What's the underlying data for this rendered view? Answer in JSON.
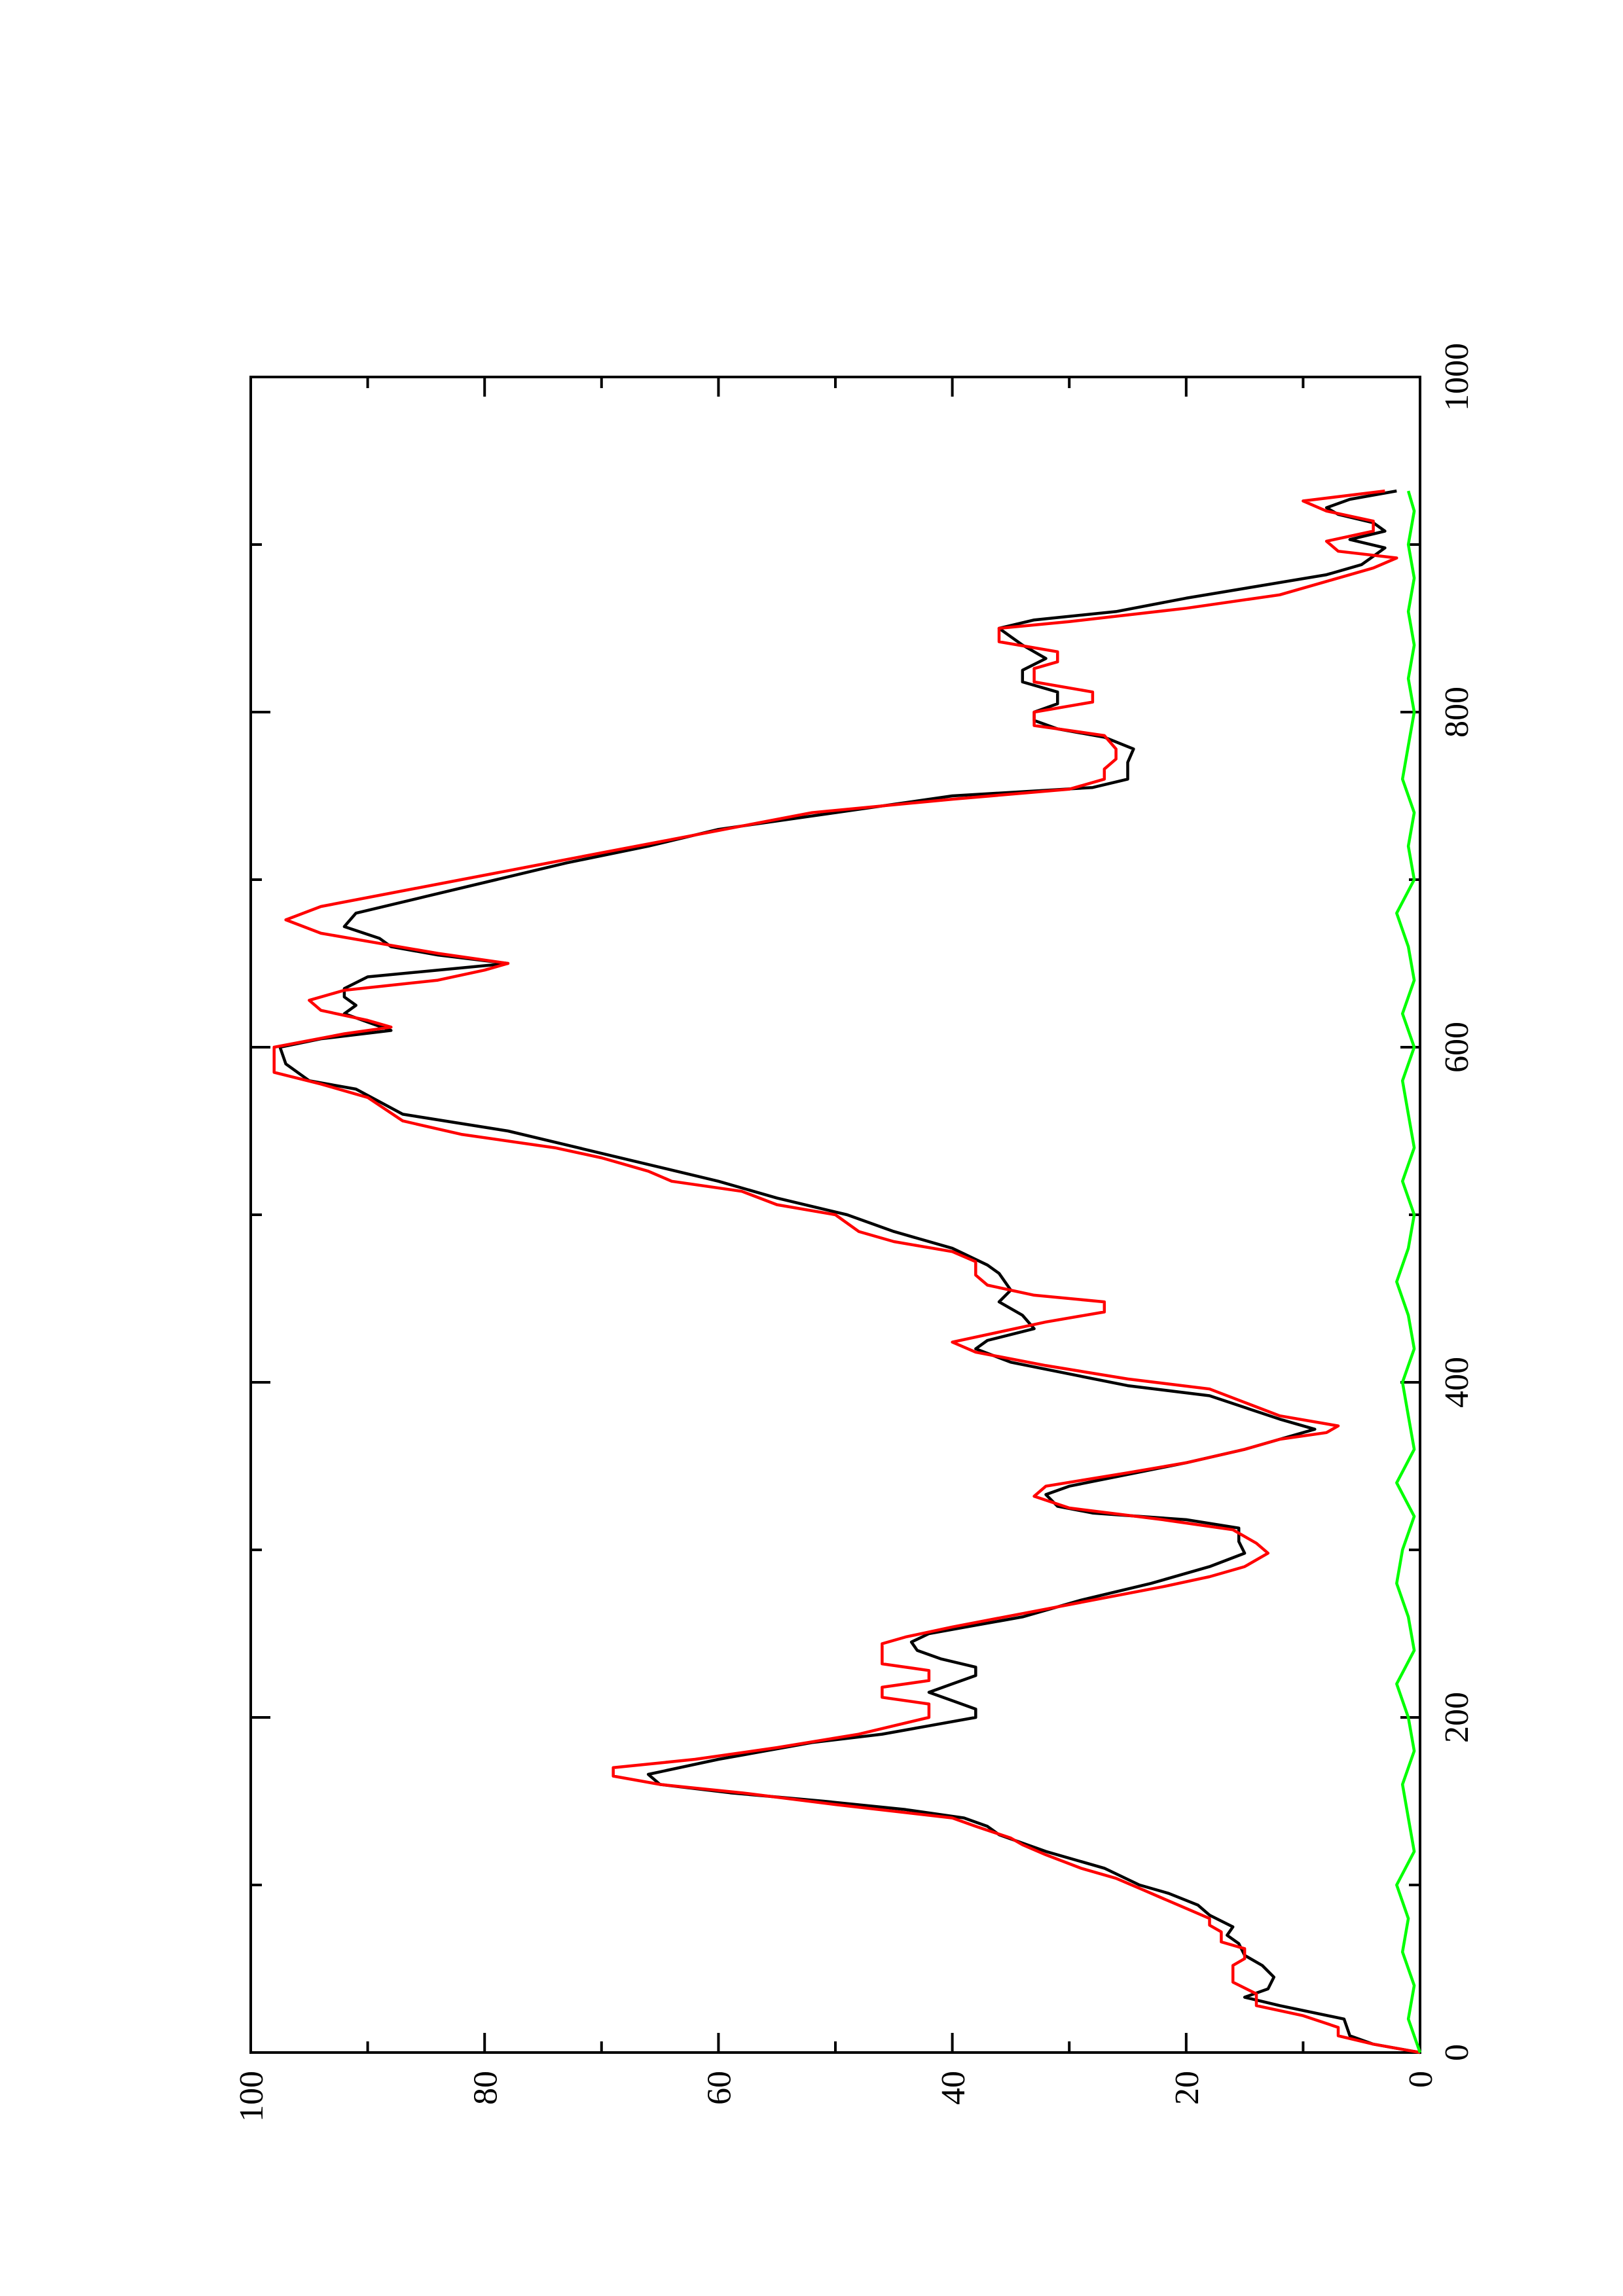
{
  "chart_data": {
    "type": "line",
    "orientation": "rotated-90-counterclockwise",
    "title": "",
    "xlabel": "",
    "ylabel": "",
    "xlim": [
      0,
      1000
    ],
    "ylim": [
      0,
      100
    ],
    "x_ticks_major": [
      0,
      200,
      400,
      600,
      800,
      1000
    ],
    "x_ticks_minor": [
      100,
      300,
      500,
      700,
      900
    ],
    "y_ticks_major": [
      0,
      20,
      40,
      60,
      80,
      100
    ],
    "y_ticks_minor": [
      10,
      30,
      50,
      70,
      90
    ],
    "grid": false,
    "legend": "none",
    "series": [
      {
        "color": "#000000",
        "points": [
          [
            0,
            0
          ],
          [
            5,
            4
          ],
          [
            10,
            6
          ],
          [
            20,
            6.5
          ],
          [
            28,
            12
          ],
          [
            33,
            15
          ],
          [
            38,
            13
          ],
          [
            45,
            12.5
          ],
          [
            52,
            13.5
          ],
          [
            58,
            15
          ],
          [
            65,
            15.5
          ],
          [
            70,
            16.5
          ],
          [
            75,
            16
          ],
          [
            82,
            18
          ],
          [
            88,
            19
          ],
          [
            95,
            21.5
          ],
          [
            100,
            24
          ],
          [
            110,
            27
          ],
          [
            120,
            32
          ],
          [
            130,
            36
          ],
          [
            135,
            37
          ],
          [
            140,
            39
          ],
          [
            145,
            44
          ],
          [
            150,
            51
          ],
          [
            155,
            59
          ],
          [
            160,
            65
          ],
          [
            166,
            66
          ],
          [
            175,
            60
          ],
          [
            185,
            52
          ],
          [
            190,
            46
          ],
          [
            195,
            42
          ],
          [
            200,
            38
          ],
          [
            205,
            38
          ],
          [
            210,
            40
          ],
          [
            215,
            42
          ],
          [
            220,
            40
          ],
          [
            225,
            38
          ],
          [
            230,
            38
          ],
          [
            235,
            41
          ],
          [
            240,
            43
          ],
          [
            245,
            43.5
          ],
          [
            250,
            42
          ],
          [
            255,
            38
          ],
          [
            260,
            34
          ],
          [
            270,
            29
          ],
          [
            280,
            23
          ],
          [
            290,
            18
          ],
          [
            298,
            15
          ],
          [
            305,
            15.5
          ],
          [
            313,
            15.5
          ],
          [
            318,
            20
          ],
          [
            322,
            28
          ],
          [
            326,
            31
          ],
          [
            333,
            32
          ],
          [
            338,
            30
          ],
          [
            345,
            25
          ],
          [
            352,
            20
          ],
          [
            360,
            15
          ],
          [
            366,
            12
          ],
          [
            372,
            9
          ],
          [
            378,
            12
          ],
          [
            385,
            15
          ],
          [
            392,
            18
          ],
          [
            398,
            25
          ],
          [
            405,
            30
          ],
          [
            412,
            35
          ],
          [
            420,
            38
          ],
          [
            425,
            37
          ],
          [
            432,
            33
          ],
          [
            440,
            34
          ],
          [
            448,
            36
          ],
          [
            455,
            35
          ],
          [
            465,
            36
          ],
          [
            470,
            37
          ],
          [
            480,
            40
          ],
          [
            490,
            45
          ],
          [
            500,
            49
          ],
          [
            510,
            55
          ],
          [
            520,
            60
          ],
          [
            530,
            66
          ],
          [
            540,
            72
          ],
          [
            550,
            78
          ],
          [
            560,
            87
          ],
          [
            575,
            91
          ],
          [
            580,
            95
          ],
          [
            590,
            97
          ],
          [
            600,
            97.5
          ],
          [
            605,
            94
          ],
          [
            610,
            88
          ],
          [
            615,
            90
          ],
          [
            620,
            92
          ],
          [
            625,
            91
          ],
          [
            630,
            92
          ],
          [
            635,
            92
          ],
          [
            642,
            90
          ],
          [
            650,
            78
          ],
          [
            655,
            84
          ],
          [
            660,
            88
          ],
          [
            665,
            89
          ],
          [
            672,
            92
          ],
          [
            680,
            91
          ],
          [
            690,
            85
          ],
          [
            700,
            79
          ],
          [
            710,
            73
          ],
          [
            720,
            66
          ],
          [
            730,
            60
          ],
          [
            740,
            50
          ],
          [
            750,
            40
          ],
          [
            755,
            28
          ],
          [
            760,
            25
          ],
          [
            770,
            25
          ],
          [
            778,
            24.5
          ],
          [
            785,
            27
          ],
          [
            790,
            31
          ],
          [
            795,
            33
          ],
          [
            800,
            33
          ],
          [
            805,
            31
          ],
          [
            812,
            31
          ],
          [
            818,
            34
          ],
          [
            825,
            34
          ],
          [
            832,
            32
          ],
          [
            840,
            34
          ],
          [
            845,
            35
          ],
          [
            850,
            36
          ],
          [
            855,
            33
          ],
          [
            860,
            26
          ],
          [
            868,
            20
          ],
          [
            875,
            14
          ],
          [
            882,
            8
          ],
          [
            888,
            5
          ],
          [
            893,
            4
          ],
          [
            898,
            3
          ],
          [
            903,
            6
          ],
          [
            908,
            3
          ],
          [
            913,
            4
          ],
          [
            918,
            7
          ],
          [
            922,
            8
          ],
          [
            927,
            6
          ],
          [
            932,
            2
          ]
        ]
      },
      {
        "color": "#ff0000",
        "points": [
          [
            0,
            0
          ],
          [
            5,
            4
          ],
          [
            10,
            7
          ],
          [
            15,
            7
          ],
          [
            22,
            10
          ],
          [
            28,
            14
          ],
          [
            35,
            14
          ],
          [
            42,
            16
          ],
          [
            52,
            16
          ],
          [
            56,
            15
          ],
          [
            62,
            15
          ],
          [
            66,
            17
          ],
          [
            72,
            17
          ],
          [
            76,
            18
          ],
          [
            80,
            18
          ],
          [
            86,
            20
          ],
          [
            92,
            22
          ],
          [
            98,
            24
          ],
          [
            104,
            26
          ],
          [
            110,
            29
          ],
          [
            118,
            32
          ],
          [
            124,
            34
          ],
          [
            128,
            35
          ],
          [
            135,
            38
          ],
          [
            140,
            40
          ],
          [
            148,
            50
          ],
          [
            155,
            58
          ],
          [
            160,
            65
          ],
          [
            165,
            69
          ],
          [
            170,
            69
          ],
          [
            175,
            62
          ],
          [
            182,
            55
          ],
          [
            190,
            48
          ],
          [
            200,
            42
          ],
          [
            208,
            42
          ],
          [
            212,
            46
          ],
          [
            218,
            46
          ],
          [
            222,
            42
          ],
          [
            228,
            42
          ],
          [
            232,
            46
          ],
          [
            244,
            46
          ],
          [
            248,
            44
          ],
          [
            254,
            40
          ],
          [
            262,
            34
          ],
          [
            270,
            28
          ],
          [
            278,
            22
          ],
          [
            284,
            18
          ],
          [
            290,
            15
          ],
          [
            298,
            13
          ],
          [
            304,
            14
          ],
          [
            312,
            16
          ],
          [
            318,
            22
          ],
          [
            325,
            30
          ],
          [
            332,
            33
          ],
          [
            338,
            32
          ],
          [
            346,
            25
          ],
          [
            352,
            20
          ],
          [
            360,
            15
          ],
          [
            366,
            12
          ],
          [
            370,
            8
          ],
          [
            374,
            7
          ],
          [
            380,
            12
          ],
          [
            388,
            15
          ],
          [
            396,
            18
          ],
          [
            402,
            25
          ],
          [
            410,
            32
          ],
          [
            418,
            38
          ],
          [
            424,
            40
          ],
          [
            430,
            36
          ],
          [
            436,
            32
          ],
          [
            442,
            27
          ],
          [
            448,
            27
          ],
          [
            452,
            33
          ],
          [
            458,
            37
          ],
          [
            464,
            38
          ],
          [
            472,
            38
          ],
          [
            478,
            40
          ],
          [
            484,
            45
          ],
          [
            490,
            48
          ],
          [
            500,
            50
          ],
          [
            506,
            55
          ],
          [
            514,
            58
          ],
          [
            520,
            64
          ],
          [
            526,
            66
          ],
          [
            534,
            70
          ],
          [
            540,
            74
          ],
          [
            548,
            82
          ],
          [
            556,
            87
          ],
          [
            570,
            90
          ],
          [
            578,
            94
          ],
          [
            585,
            98
          ],
          [
            600,
            98
          ],
          [
            608,
            92
          ],
          [
            612,
            88
          ],
          [
            616,
            90
          ],
          [
            622,
            94
          ],
          [
            628,
            95
          ],
          [
            634,
            92
          ],
          [
            640,
            84
          ],
          [
            646,
            80
          ],
          [
            650,
            78
          ],
          [
            656,
            84
          ],
          [
            662,
            89
          ],
          [
            668,
            94
          ],
          [
            676,
            97
          ],
          [
            684,
            94
          ],
          [
            692,
            88
          ],
          [
            700,
            82
          ],
          [
            708,
            76
          ],
          [
            716,
            70
          ],
          [
            724,
            64
          ],
          [
            732,
            58
          ],
          [
            740,
            52
          ],
          [
            748,
            40
          ],
          [
            754,
            30
          ],
          [
            760,
            27
          ],
          [
            766,
            27
          ],
          [
            772,
            26
          ],
          [
            778,
            26
          ],
          [
            786,
            27
          ],
          [
            792,
            33
          ],
          [
            800,
            33
          ],
          [
            806,
            28
          ],
          [
            812,
            28
          ],
          [
            818,
            33
          ],
          [
            826,
            33
          ],
          [
            830,
            31
          ],
          [
            836,
            31
          ],
          [
            842,
            36
          ],
          [
            850,
            36
          ],
          [
            854,
            30
          ],
          [
            862,
            20
          ],
          [
            870,
            12
          ],
          [
            878,
            8
          ],
          [
            886,
            4
          ],
          [
            892,
            2
          ],
          [
            896,
            7
          ],
          [
            902,
            8
          ],
          [
            908,
            4
          ],
          [
            914,
            4
          ],
          [
            920,
            8
          ],
          [
            926,
            10
          ],
          [
            932,
            3
          ]
        ]
      },
      {
        "color": "#00ff00",
        "points": [
          [
            0,
            0
          ],
          [
            20,
            1
          ],
          [
            40,
            0.5
          ],
          [
            60,
            1.5
          ],
          [
            80,
            1
          ],
          [
            100,
            2
          ],
          [
            120,
            0.5
          ],
          [
            140,
            1
          ],
          [
            160,
            1.5
          ],
          [
            180,
            0.5
          ],
          [
            200,
            1
          ],
          [
            220,
            2
          ],
          [
            240,
            0.5
          ],
          [
            260,
            1
          ],
          [
            280,
            2
          ],
          [
            300,
            1.5
          ],
          [
            320,
            0.5
          ],
          [
            340,
            2
          ],
          [
            360,
            0.5
          ],
          [
            380,
            1
          ],
          [
            400,
            1.5
          ],
          [
            420,
            0.5
          ],
          [
            440,
            1
          ],
          [
            460,
            2
          ],
          [
            480,
            1
          ],
          [
            500,
            0.5
          ],
          [
            520,
            1.5
          ],
          [
            540,
            0.5
          ],
          [
            560,
            1
          ],
          [
            580,
            1.5
          ],
          [
            600,
            0.5
          ],
          [
            620,
            1.5
          ],
          [
            640,
            0.5
          ],
          [
            660,
            1
          ],
          [
            680,
            2
          ],
          [
            700,
            0.5
          ],
          [
            720,
            1
          ],
          [
            740,
            0.5
          ],
          [
            760,
            1.5
          ],
          [
            780,
            1
          ],
          [
            800,
            0.5
          ],
          [
            820,
            1
          ],
          [
            840,
            0.5
          ],
          [
            860,
            1
          ],
          [
            880,
            0.5
          ],
          [
            900,
            1
          ],
          [
            920,
            0.5
          ],
          [
            932,
            1
          ]
        ]
      }
    ]
  }
}
